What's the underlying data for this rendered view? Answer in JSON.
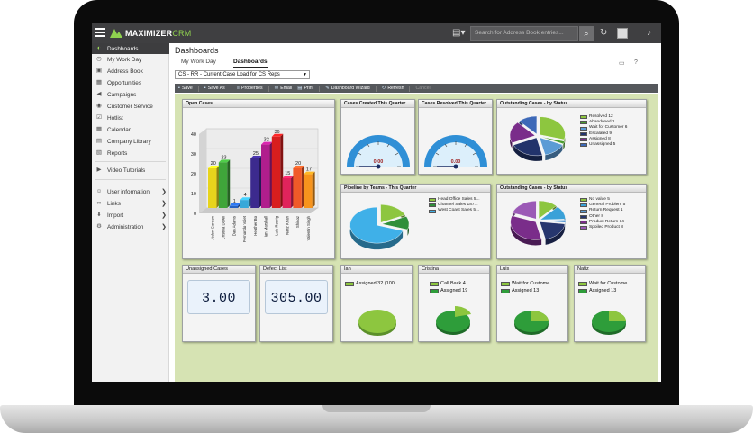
{
  "app": {
    "logo_main": "MAXIMIZER",
    "logo_sub": "CRM"
  },
  "topbar": {
    "search_placeholder": "Search for Address Book entries..."
  },
  "sidebar": {
    "items": [
      {
        "label": "Dashboards",
        "icon": "dashboard-icon"
      },
      {
        "label": "My Work Day",
        "icon": "clock-icon"
      },
      {
        "label": "Address Book",
        "icon": "address-book-icon"
      },
      {
        "label": "Opportunities",
        "icon": "opportunities-icon"
      },
      {
        "label": "Campaigns",
        "icon": "megaphone-icon"
      },
      {
        "label": "Customer Service",
        "icon": "customer-service-icon"
      },
      {
        "label": "Hotlist",
        "icon": "hotlist-icon"
      },
      {
        "label": "Calendar",
        "icon": "calendar-icon"
      },
      {
        "label": "Company Library",
        "icon": "library-icon"
      },
      {
        "label": "Reports",
        "icon": "reports-icon"
      },
      {
        "label": "Video Tutorials",
        "icon": "video-icon"
      },
      {
        "label": "User information",
        "icon": "user-icon"
      },
      {
        "label": "Links",
        "icon": "link-icon"
      },
      {
        "label": "Import",
        "icon": "import-icon"
      },
      {
        "label": "Administration",
        "icon": "gear-icon"
      }
    ]
  },
  "main": {
    "title": "Dashboards",
    "tabs": [
      "My Work Day",
      "Dashboards"
    ],
    "dashboard_select": "CS - RR - Current Case Load for CS Reps",
    "toolbar": [
      "Save",
      "Save As",
      "Properties",
      "Email",
      "Print",
      "Dashboard Wizard",
      "Refresh",
      "Cancel"
    ]
  },
  "panels": {
    "open_cases": "Open Cases",
    "cases_created": "Cases Created This Quarter",
    "cases_resolved": "Cases Resolved This Quarter",
    "outstanding_status": "Outstanding Cases - by Status",
    "pipeline": "Pipeline by Teams - This Quarter",
    "outstanding_status2": "Outstanding Cases - by Status",
    "unassigned": "Unassigned Cases",
    "defect": "Defect List",
    "ian": "Ian",
    "cristina": "Cristina",
    "luis": "Luis",
    "nafiz": "Nafiz"
  },
  "gauges": {
    "created_value": "0.00",
    "resolved_value": "0.00"
  },
  "kpis": {
    "unassigned_value": "3.00",
    "defect_value": "305.00"
  },
  "chart_data": [
    {
      "type": "bar",
      "title": "Open Cases",
      "categories": [
        "Aiden Gordon",
        "Cristina Dowli",
        "Dan Adams",
        "Fernando Valet",
        "Heather Bo",
        "Ian Marshall",
        "Luis Rodrig",
        "Nafiz Khan",
        "Shinoz",
        "Valentin Singh"
      ],
      "values": [
        20,
        23,
        1,
        4,
        25,
        32,
        36,
        15,
        20,
        17
      ],
      "colors": [
        "#e8d41c",
        "#3fa53a",
        "#2461c4",
        "#37a8d9",
        "#3c2a8e",
        "#b01e8d",
        "#d81e1e",
        "#e0245c",
        "#f05a28",
        "#f7941d"
      ],
      "ylim": [
        0,
        40
      ],
      "yticks": [
        "0",
        "10",
        "20",
        "30",
        "40"
      ]
    },
    {
      "type": "pie",
      "title": "Outstanding Cases - by Status",
      "labels": [
        "Resolved 12",
        "Abandoned 1",
        "Wait for Customer 6",
        "Escalated 9",
        "Assigned 8",
        "Unassigned 5"
      ],
      "values": [
        12,
        1,
        6,
        9,
        8,
        5
      ],
      "colors": [
        "#8dc63f",
        "#4b9e2e",
        "#5b9bd5",
        "#22336b",
        "#7a2d8a",
        "#3d69b8"
      ]
    },
    {
      "type": "pie",
      "title": "Pipeline by Teams - This Quarter",
      "labels": [
        "Head Office Sales 5...",
        "Channel Sales 187...",
        "West Coast Sales 5..."
      ],
      "values": [
        18,
        12,
        70
      ],
      "colors": [
        "#8dc63f",
        "#2f8f3a",
        "#3fb0e8"
      ]
    },
    {
      "type": "pie",
      "title": "Outstanding Cases - by Status",
      "labels": [
        "No value 5",
        "General Problem 5",
        "Return Request 1",
        "Other 8",
        "Product Return 14",
        "Spoiled Product 8"
      ],
      "values": [
        5,
        5,
        1,
        8,
        14,
        8
      ],
      "colors": [
        "#8dc63f",
        "#3aa1d8",
        "#5b9bd5",
        "#26366e",
        "#7a2d8a",
        "#9b59b6"
      ]
    }
  ],
  "person_cards": {
    "ian": {
      "legend": [
        "Assigned 32 (100..."
      ]
    },
    "cristina": {
      "legend": [
        "Call Back 4",
        "Assigned 19"
      ]
    },
    "luis": {
      "legend": [
        "Wait for Custome...",
        "Assigned 13"
      ]
    },
    "nafiz": {
      "legend": [
        "Wait for Custome...",
        "Assigned 13"
      ]
    }
  }
}
